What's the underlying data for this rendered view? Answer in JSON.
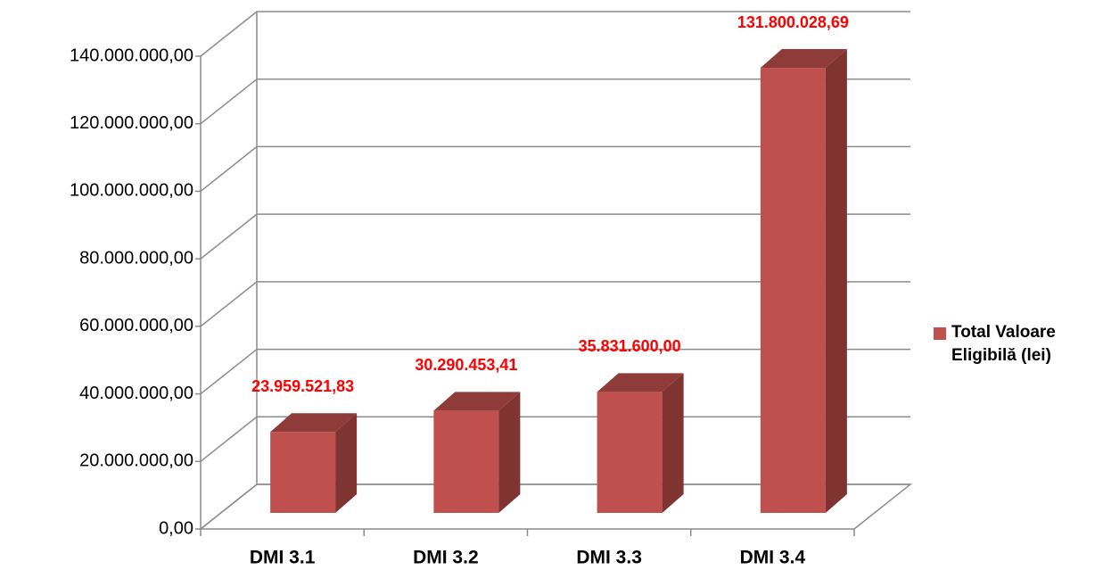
{
  "chart_data": {
    "type": "bar3d",
    "categories": [
      "DMI 3.1",
      "DMI 3.2",
      "DMI 3.3",
      "DMI 3.4"
    ],
    "series": [
      {
        "name": "Total Valoare Eligibilă (lei)",
        "color": "#c0504d",
        "values": [
          23959521.83,
          30290453.41,
          35831600,
          131800028.69
        ],
        "value_labels": [
          "23.959.521,83",
          "30.290.453,41",
          "35.831.600,00",
          "131.800.028,69"
        ]
      }
    ],
    "ylim": [
      0,
      140000000
    ],
    "yticks": [
      {
        "value": 0,
        "label": "0,00"
      },
      {
        "value": 20000000,
        "label": "20.000.000,00"
      },
      {
        "value": 40000000,
        "label": "40.000.000,00"
      },
      {
        "value": 60000000,
        "label": "60.000.000,00"
      },
      {
        "value": 80000000,
        "label": "80.000.000,00"
      },
      {
        "value": 100000000,
        "label": "100.000.000,00"
      },
      {
        "value": 120000000,
        "label": "120.000.000,00"
      },
      {
        "value": 140000000,
        "label": "140.000.000,00"
      }
    ],
    "grid": true,
    "legend": "right"
  }
}
